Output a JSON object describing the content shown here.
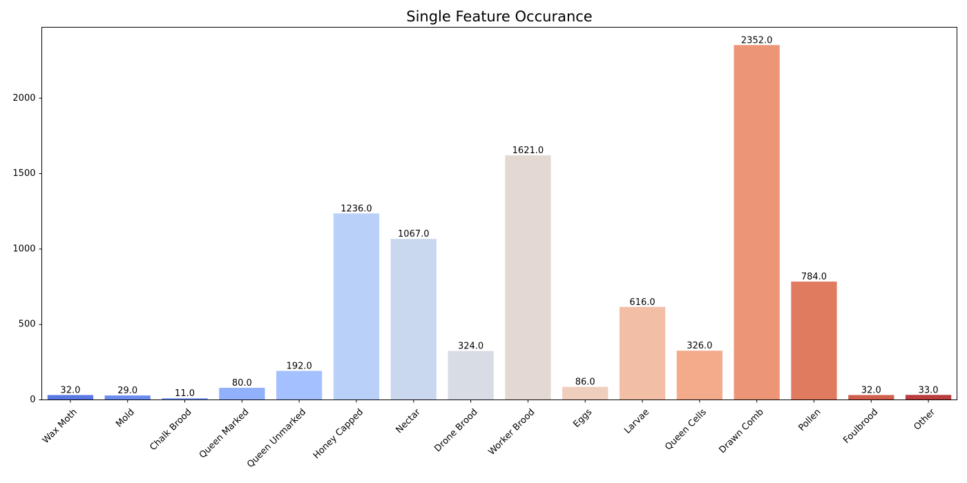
{
  "chart_data": {
    "type": "bar",
    "title": "Single Feature Occurance",
    "xlabel": "",
    "ylabel": "",
    "ylim": [
      0,
      2470
    ],
    "yticks": [
      0,
      500,
      1000,
      1500,
      2000
    ],
    "categories": [
      "Wax Moth",
      "Mold",
      "Chalk Brood",
      "Queen Marked",
      "Queen Unmarked",
      "Honey Capped",
      "Nectar",
      "Drone Brood",
      "Worker Brood",
      "Eggs",
      "Larvae",
      "Queen Cells",
      "Drawn Comb",
      "Pollen",
      "Foulbrood",
      "Other"
    ],
    "values": [
      32,
      29,
      11,
      80,
      192,
      1236,
      1067,
      324,
      1621,
      86,
      616,
      326,
      2352,
      784,
      32,
      33
    ],
    "value_labels": [
      "32.0",
      "29.0",
      "11.0",
      "80.0",
      "192.0",
      "1236.0",
      "1067.0",
      "324.0",
      "1621.0",
      "86.0",
      "616.0",
      "326.0",
      "2352.0",
      "784.0",
      "32.0",
      "33.0"
    ],
    "colors": [
      "#5a78e4",
      "#6b8bef",
      "#7f9ff8",
      "#91b1fd",
      "#a5c0fe",
      "#b9d0f9",
      "#cad8ef",
      "#d8dce4",
      "#e4d8d3",
      "#efcebd",
      "#f2bea5",
      "#f3ab8c",
      "#ec9677",
      "#e17b60",
      "#d05f4e",
      "#bb3e3f"
    ],
    "legend": "none",
    "grid": false
  }
}
